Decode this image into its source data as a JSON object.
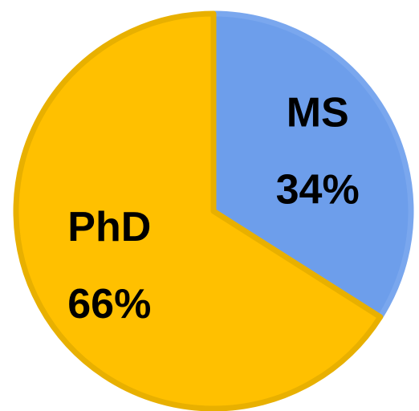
{
  "chart_data": {
    "type": "pie",
    "categories": [
      "MS",
      "PhD"
    ],
    "values": [
      34,
      66
    ],
    "value_labels": [
      "34%",
      "66%"
    ],
    "colors": [
      "#6d9eeb",
      "#ffc000"
    ],
    "stroke_colors": [
      "#7aa7ee",
      "#e8b000"
    ]
  }
}
